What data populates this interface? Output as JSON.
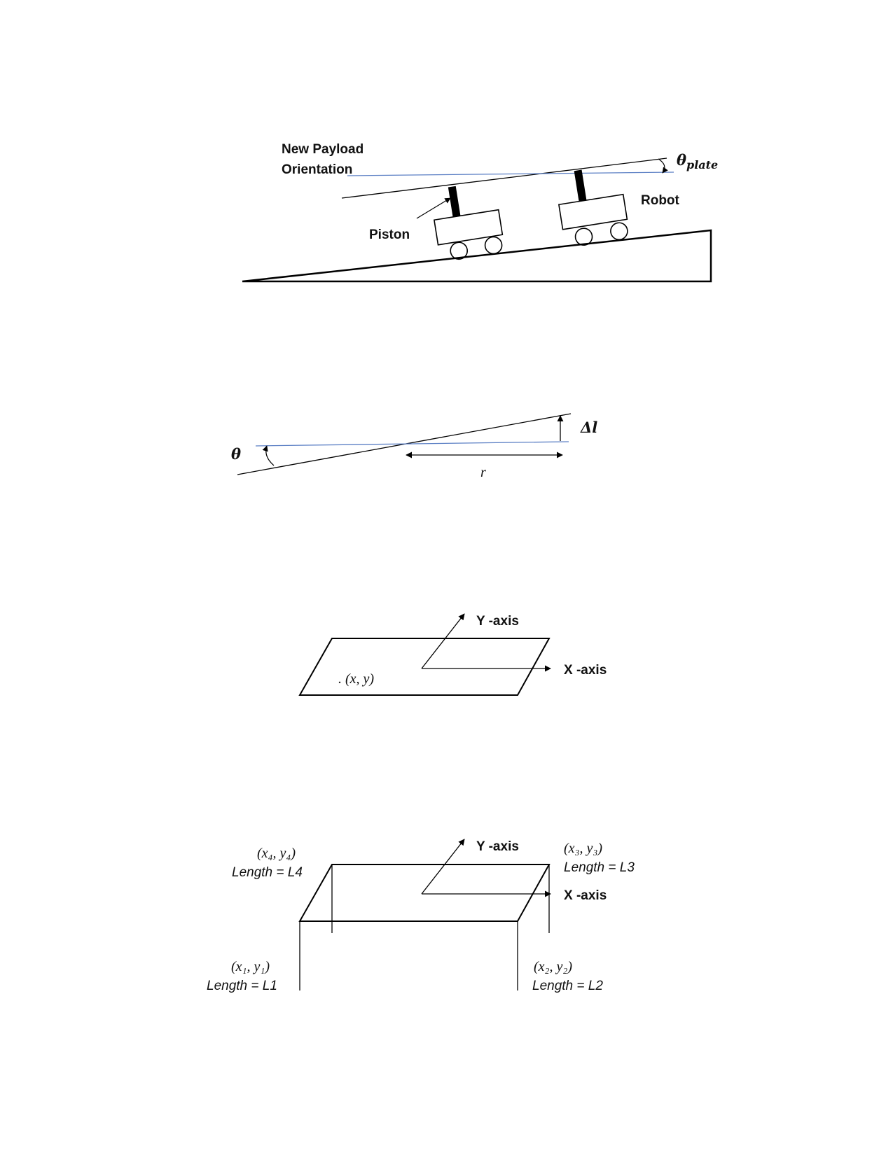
{
  "figure1": {
    "payload_label_1": "New Payload",
    "payload_label_2": "Orientation",
    "theta_plate_main": "θ",
    "theta_plate_sub": "plate",
    "robot_label": "Robot",
    "piston_label": "Piston"
  },
  "figure2": {
    "theta_label": "θ",
    "delta_l_label": "Δl",
    "r_label": "r"
  },
  "figure3": {
    "y_axis_label": "Y -axis",
    "x_axis_label": "X -axis",
    "point_label": ".  (x, y)"
  },
  "figure4": {
    "y_axis_label": "Y -axis",
    "x_axis_label": "X -axis",
    "corner1_coord": "(x₁, y₁)",
    "corner1_length": "Length = L1",
    "corner2_coord": "(x₂, y₂)",
    "corner2_length": "Length = L2",
    "corner3_coord": "(x₃, y₃)",
    "corner3_length": "Length = L3",
    "corner4_coord": "(x₄, y₄)",
    "corner4_length": "Length = L4"
  }
}
